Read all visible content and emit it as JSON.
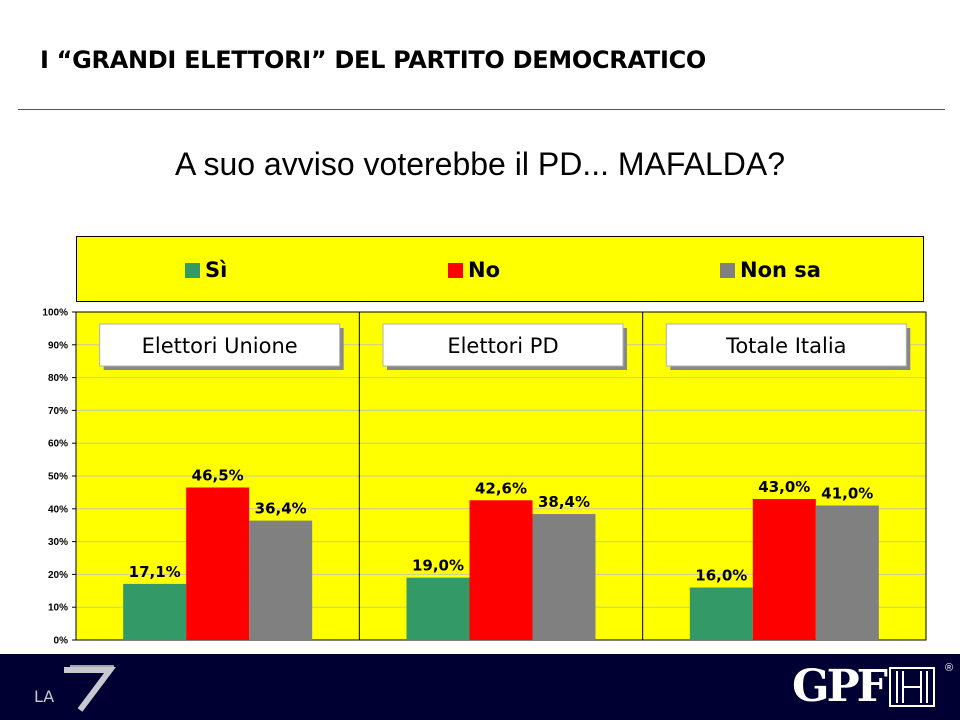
{
  "header": {
    "title": "I “GRANDI ELETTORI” DEL PARTITO DEMOCRATICO"
  },
  "question": "A suo avviso voterebbe il PD... MAFALDA?",
  "legend": [
    {
      "label": "Sì",
      "color": "#339966"
    },
    {
      "label": "No",
      "color": "#ff0000"
    },
    {
      "label": "Non sa",
      "color": "#808080"
    }
  ],
  "colors": {
    "plot_background": "#ffff00",
    "footer": "#000033"
  },
  "chart_data": {
    "type": "bar",
    "ylim": [
      0,
      100
    ],
    "y_ticks": [
      "0%",
      "10%",
      "20%",
      "30%",
      "40%",
      "50%",
      "60%",
      "70%",
      "80%",
      "90%",
      "100%"
    ],
    "grid": true,
    "legend_position": "top",
    "categories": [
      "Elettori Unione",
      "Elettori PD",
      "Totale Italia"
    ],
    "series": [
      {
        "name": "Sì",
        "values": [
          17.1,
          19.0,
          16.0
        ],
        "labels": [
          "17,1%",
          "19,0%",
          "16,0%"
        ]
      },
      {
        "name": "No",
        "values": [
          46.5,
          42.6,
          43.0
        ],
        "labels": [
          "46,5%",
          "42,6%",
          "43,0%"
        ]
      },
      {
        "name": "Non sa",
        "values": [
          36.4,
          38.4,
          41.0
        ],
        "labels": [
          "36,4%",
          "38,4%",
          "41,0%"
        ]
      }
    ]
  },
  "footer": {
    "left_logo": {
      "text": "LA",
      "icon": "la7-logo"
    },
    "right_logo": {
      "text": "GPF",
      "registered": "®",
      "icon": "gpf-logo"
    }
  }
}
